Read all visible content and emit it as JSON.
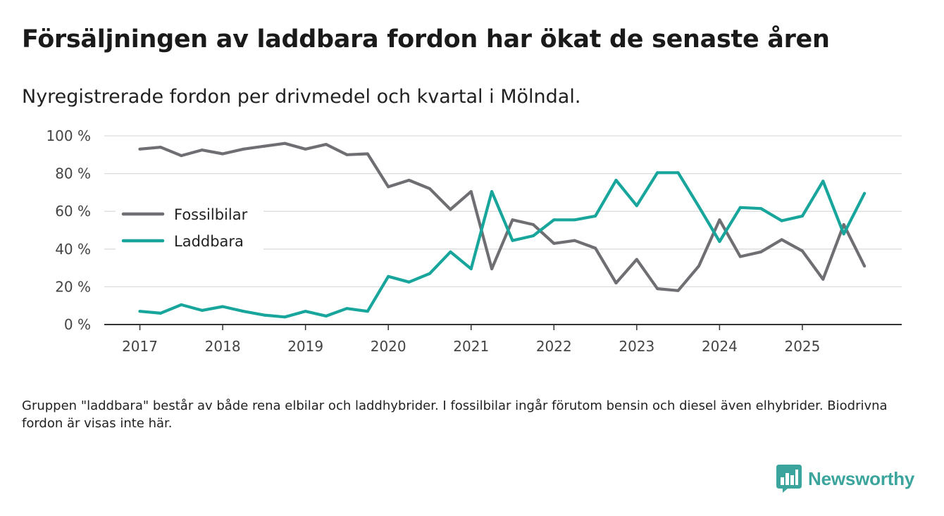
{
  "title": "Försäljningen av laddbara fordon har ökat de senaste åren",
  "subtitle": "Nyregistrerade fordon per drivmedel och kvartal i Mölndal.",
  "note": "Gruppen \"laddbara\" består av både rena elbilar och laddhybrider. I fossilbilar ingår förutom bensin och diesel även elhybrider. Biodrivna fordon är visas inte här.",
  "brand": {
    "name": "Newsworthy",
    "icon": "bar-chart-bubble-icon",
    "color": "#3ba49c"
  },
  "chart_data": {
    "type": "line",
    "title": "Nyregistrerade fordon per drivmedel och kvartal i Mölndal.",
    "xlabel": "",
    "ylabel": "",
    "ylim": [
      0,
      100
    ],
    "yticks": [
      0,
      20,
      40,
      60,
      80,
      100
    ],
    "ytick_labels": [
      "0 %",
      "20 %",
      "40 %",
      "60 %",
      "80 %",
      "100 %"
    ],
    "xticks": [
      2017,
      2018,
      2019,
      2020,
      2021,
      2022,
      2023,
      2024,
      2025
    ],
    "xlim": [
      2016.57,
      2026.2
    ],
    "grid": true,
    "legend_position": "left-middle",
    "x": [
      2017,
      2017.25,
      2017.5,
      2017.75,
      2018,
      2018.25,
      2018.5,
      2018.75,
      2019,
      2019.25,
      2019.5,
      2019.75,
      2020,
      2020.25,
      2020.5,
      2020.75,
      2021,
      2021.25,
      2021.5,
      2021.75,
      2022,
      2022.25,
      2022.5,
      2022.75,
      2023,
      2023.25,
      2023.5,
      2023.75,
      2024,
      2024.25,
      2024.5,
      2024.75,
      2025,
      2025.25,
      2025.5,
      2025.75
    ],
    "series": [
      {
        "name": "Fossilbilar",
        "color": "#6f6e73",
        "values": [
          93,
          94,
          89.5,
          92.5,
          90.5,
          93,
          94.5,
          96,
          93,
          95.5,
          90,
          90.5,
          73,
          76.5,
          72,
          61,
          70.5,
          29.5,
          55.5,
          53,
          43,
          44.5,
          40.5,
          22,
          34.5,
          19,
          18,
          31,
          55.5,
          36,
          38.5,
          45,
          39,
          24,
          53,
          31
        ]
      },
      {
        "name": "Laddbara",
        "color": "#17a59c",
        "values": [
          7,
          6,
          10.5,
          7.5,
          9.5,
          7,
          5,
          4,
          7,
          4.5,
          8.5,
          7,
          25.5,
          22.5,
          27,
          38.5,
          29.5,
          70.5,
          44.5,
          47,
          55.5,
          55.5,
          57.5,
          76.5,
          63,
          80.5,
          80.5,
          62.5,
          44,
          62,
          61.5,
          55,
          57.5,
          76,
          48,
          69.5
        ]
      }
    ]
  }
}
